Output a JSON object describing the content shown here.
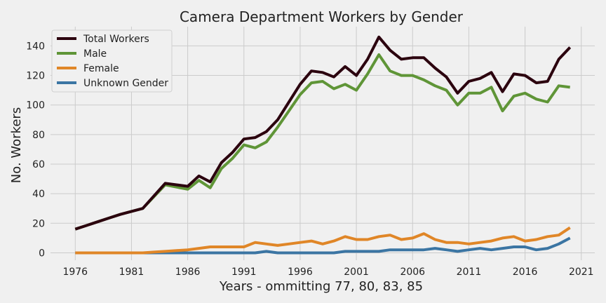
{
  "chart_data": {
    "type": "line",
    "title": "Camera Department Workers by Gender",
    "xlabel": "Years - ommitting 77, 80, 83, 85",
    "ylabel": "No. Workers",
    "xlim": [
      1973.8,
      2022.2
    ],
    "ylim": [
      -5,
      153
    ],
    "x_ticks": [
      1976,
      1981,
      1986,
      1991,
      1996,
      2001,
      2006,
      2011,
      2016,
      2021
    ],
    "y_ticks": [
      0,
      20,
      40,
      60,
      80,
      100,
      120,
      140
    ],
    "grid": true,
    "legend_position": "top-left",
    "x": [
      1976,
      1977,
      1978,
      1979,
      1980,
      1981,
      1982,
      1983,
      1984,
      1985,
      1986,
      1987,
      1988,
      1989,
      1990,
      1991,
      1992,
      1993,
      1994,
      1995,
      1996,
      1997,
      1998,
      1999,
      2000,
      2001,
      2002,
      2003,
      2004,
      2005,
      2006,
      2007,
      2008,
      2009,
      2010,
      2011,
      2012,
      2013,
      2014,
      2015,
      2016,
      2017,
      2018,
      2019,
      2020
    ],
    "series": [
      {
        "name": "Total Workers",
        "color": "#2b000e",
        "values": [
          16,
          18.5,
          21,
          23.5,
          26,
          28,
          30,
          38.5,
          47,
          46,
          45,
          52,
          48,
          61,
          68,
          77,
          78,
          82,
          90,
          102,
          114,
          123,
          122,
          119,
          126,
          120,
          131,
          146,
          137,
          131,
          132,
          132,
          125,
          119,
          108,
          116,
          118,
          122,
          109,
          121,
          120,
          115,
          116,
          131,
          139
        ]
      },
      {
        "name": "Male",
        "color": "#5f9537",
        "values": [
          16,
          18.5,
          21,
          23.5,
          26,
          28,
          30,
          38,
          46,
          44.5,
          43,
          49,
          44,
          57,
          64,
          73,
          71,
          75,
          85,
          96,
          107,
          115,
          116,
          111,
          114,
          110,
          121,
          134,
          123,
          120,
          120,
          117,
          113,
          110,
          100,
          108,
          108,
          112,
          96,
          106,
          108,
          104,
          102,
          113,
          112
        ]
      },
      {
        "name": "Female",
        "color": "#e08627",
        "values": [
          0,
          0,
          0,
          0,
          0,
          0,
          0,
          0.5,
          1,
          1.5,
          2,
          3,
          4,
          4,
          4,
          4,
          7,
          6,
          5,
          6,
          7,
          8,
          6,
          8,
          11,
          9,
          9,
          11,
          12,
          9,
          10,
          13,
          9,
          7,
          7,
          6,
          7,
          8,
          10,
          11,
          8,
          9,
          11,
          12,
          17
        ]
      },
      {
        "name": "Unknown Gender",
        "color": "#3b75a3",
        "values": [
          0,
          0,
          0,
          0,
          0,
          0,
          0,
          0,
          0,
          0,
          0,
          0,
          0,
          0,
          0,
          0,
          0,
          1,
          0,
          0,
          0,
          0,
          0,
          0,
          1,
          1,
          1,
          1,
          2,
          2,
          2,
          2,
          3,
          2,
          1,
          2,
          3,
          2,
          3,
          4,
          4,
          2,
          3,
          6,
          10
        ]
      }
    ]
  }
}
